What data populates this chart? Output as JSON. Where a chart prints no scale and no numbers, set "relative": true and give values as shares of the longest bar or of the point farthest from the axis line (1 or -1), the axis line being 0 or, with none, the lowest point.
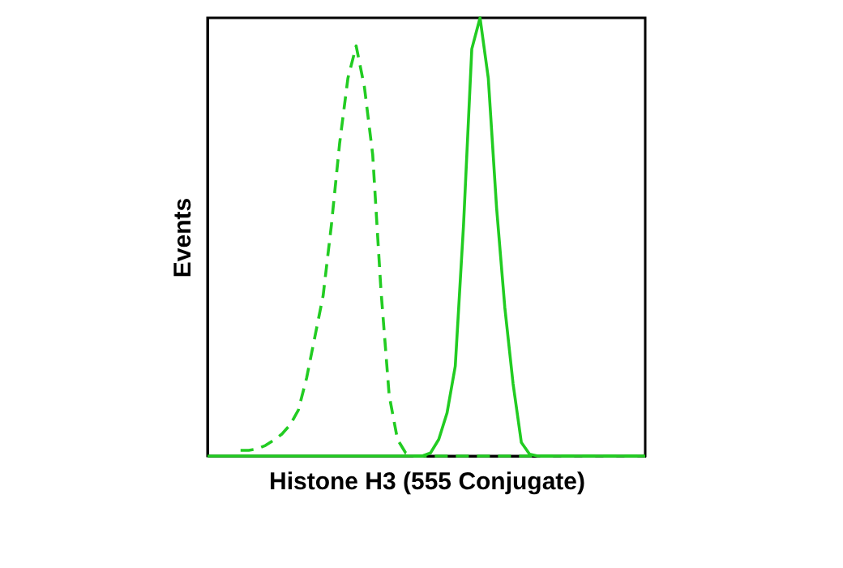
{
  "chart_data": {
    "type": "line",
    "relative": true,
    "xlabel": "Histone H3 (555 Conjugate)",
    "ylabel": "Events",
    "categories": [
      null,
      null,
      null,
      null,
      null,
      null,
      null,
      null,
      null,
      null,
      null,
      null,
      null,
      null,
      null,
      null,
      null,
      null,
      null,
      null,
      null,
      null,
      null,
      null,
      null,
      null,
      null,
      null,
      null,
      null,
      null,
      null,
      null,
      null,
      null,
      null,
      null,
      null,
      null,
      null,
      null,
      null,
      null,
      null,
      null,
      null,
      null,
      null,
      null,
      null,
      null,
      null,
      null,
      null
    ],
    "series": [
      {
        "color": "#22cc22",
        "line_style": "dashed",
        "values": [
          null,
          null,
          null,
          null,
          0.013,
          0.013,
          0.016,
          0.024,
          0.036,
          0.05,
          0.071,
          0.105,
          0.178,
          0.272,
          0.366,
          0.527,
          0.714,
          0.862,
          0.936,
          0.842,
          0.688,
          0.379,
          0.138,
          0.038,
          0.007,
          0,
          0,
          0,
          0,
          0,
          0,
          0,
          0,
          0,
          0,
          0,
          0,
          0,
          0,
          0,
          0,
          0,
          0,
          0,
          0,
          0,
          0,
          0,
          0,
          0,
          0,
          0,
          0,
          0
        ]
      },
      {
        "color": "#22cc22",
        "line_style": "solid",
        "values": [
          0,
          0,
          0,
          0,
          0,
          0,
          0,
          0,
          0,
          0,
          0,
          0,
          0,
          0,
          0,
          0,
          0,
          0,
          0,
          0,
          0,
          0,
          0,
          0,
          0,
          0,
          0,
          0.007,
          0.038,
          0.098,
          0.205,
          0.527,
          0.929,
          1,
          0.862,
          0.567,
          0.339,
          0.165,
          0.031,
          0.004,
          0,
          0,
          0,
          0,
          0,
          0,
          0,
          0,
          0,
          0,
          0,
          0,
          0,
          0
        ]
      }
    ],
    "grid": false,
    "marker": "none"
  }
}
